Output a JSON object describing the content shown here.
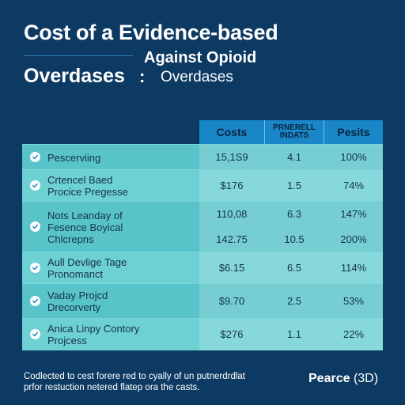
{
  "header": {
    "title": "Cost of a Evidence-based",
    "subtitle_right": "Against Opioid",
    "overdoses_bold": "Overdases",
    "colon": ":",
    "overdoses_light": "Overdases"
  },
  "table": {
    "columns": [
      "Costs",
      "PRNERELL INDATS",
      "Pesits"
    ],
    "column_small_line1": "PRNERELL",
    "column_small_line2": "INDATS",
    "rows": [
      {
        "label_lines": [
          "Pescerviing"
        ],
        "values": [
          [
            "15,1S9"
          ],
          [
            "4.1"
          ],
          [
            "100%"
          ]
        ]
      },
      {
        "label_lines": [
          "Crtencel Baed",
          "Procice Pregesse"
        ],
        "values": [
          [
            "$176"
          ],
          [
            "1.5"
          ],
          [
            "74%"
          ]
        ]
      },
      {
        "label_lines": [
          "Nots Leanday of",
          "Fesence Boyical",
          "Chlcrepns"
        ],
        "values": [
          [
            "110,08",
            "142.75"
          ],
          [
            "6.3",
            "10.5"
          ],
          [
            "147%",
            "200%"
          ]
        ]
      },
      {
        "label_lines": [
          "Aull Devlige Tage",
          "Pronomanct"
        ],
        "values": [
          [
            "$6.15"
          ],
          [
            "6.5"
          ],
          [
            "114%"
          ]
        ]
      },
      {
        "label_lines": [
          "Vaday Projcd",
          "Drecorverty"
        ],
        "values": [
          [
            "$9.70"
          ],
          [
            "2.5"
          ],
          [
            "53%"
          ]
        ]
      },
      {
        "label_lines": [
          "Anica Linpy Contory",
          "Projcess"
        ],
        "values": [
          [
            "$276"
          ],
          [
            "1.1"
          ],
          [
            "22%"
          ]
        ]
      }
    ]
  },
  "footer": {
    "line1": "Codlected to cest forere red to cyally of un putnerdrdlat",
    "line2": "prfor restuction netered flatep ora the casts.",
    "brand_bold": "Pearce",
    "brand_rest": " (3D)"
  },
  "colors": {
    "background": "#0d3a63",
    "header_band": "#1986c7",
    "row_teal": "#58c4c9"
  },
  "icons": {
    "row_marker": "check-circle-icon"
  }
}
